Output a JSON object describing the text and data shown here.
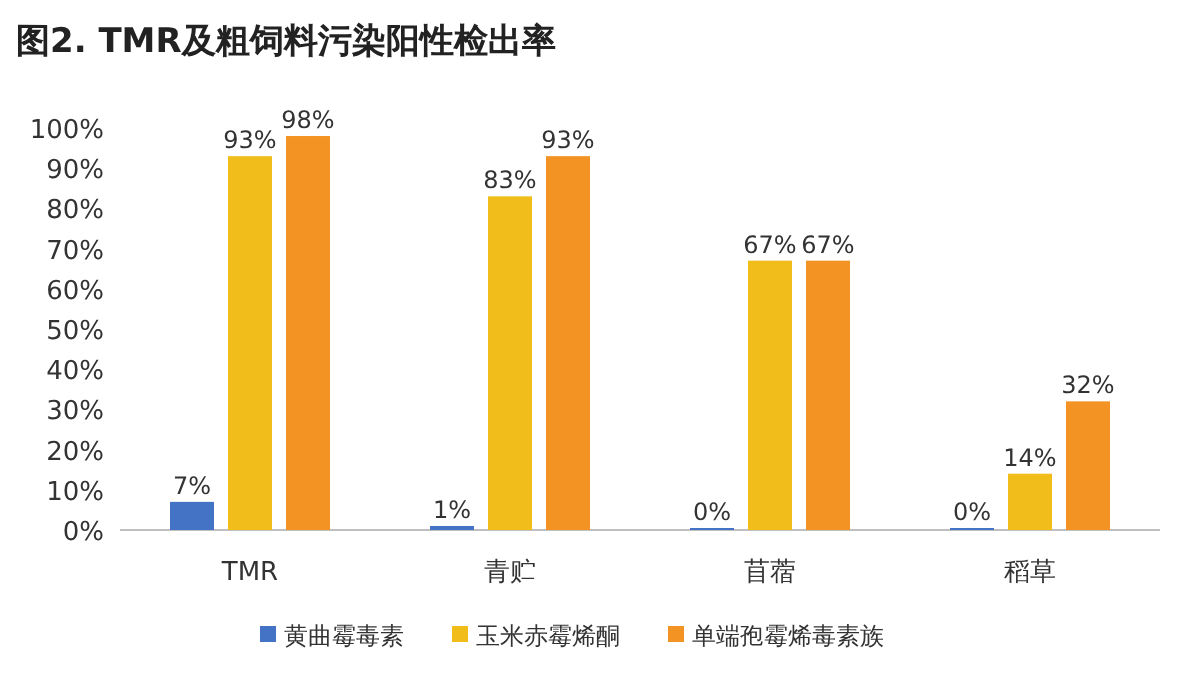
{
  "chart_data": {
    "type": "bar",
    "title": "图2. TMR及粗饲料污染阳性检出率",
    "categories": [
      "TMR",
      "青贮",
      "苜蓿",
      "稻草"
    ],
    "series": [
      {
        "name": "黄曲霉毒素",
        "color": "#4472c4",
        "values": [
          7,
          1,
          0,
          0
        ],
        "value_labels": [
          "7%",
          "1%",
          "0%",
          "0%"
        ]
      },
      {
        "name": "玉米赤霉烯酮",
        "color": "#f0bd1a",
        "values": [
          93,
          83,
          67,
          14
        ],
        "value_labels": [
          "93%",
          "83%",
          "67%",
          "14%"
        ]
      },
      {
        "name": "单端孢霉烯毒素族",
        "color": "#f39323",
        "values": [
          98,
          93,
          67,
          32
        ],
        "value_labels": [
          "98%",
          "93%",
          "67%",
          "32%"
        ]
      }
    ],
    "ylim": [
      0,
      100
    ],
    "yticks": [
      {
        "value": 0,
        "label": "0%"
      },
      {
        "value": 10,
        "label": "10%"
      },
      {
        "value": 20,
        "label": "20%"
      },
      {
        "value": 30,
        "label": "30%"
      },
      {
        "value": 40,
        "label": "40%"
      },
      {
        "value": 50,
        "label": "50%"
      },
      {
        "value": 60,
        "label": "60%"
      },
      {
        "value": 70,
        "label": "70%"
      },
      {
        "value": 80,
        "label": "80%"
      },
      {
        "value": 90,
        "label": "90%"
      },
      {
        "value": 100,
        "label": "100%"
      }
    ],
    "grid": false,
    "legend": "bottom"
  }
}
